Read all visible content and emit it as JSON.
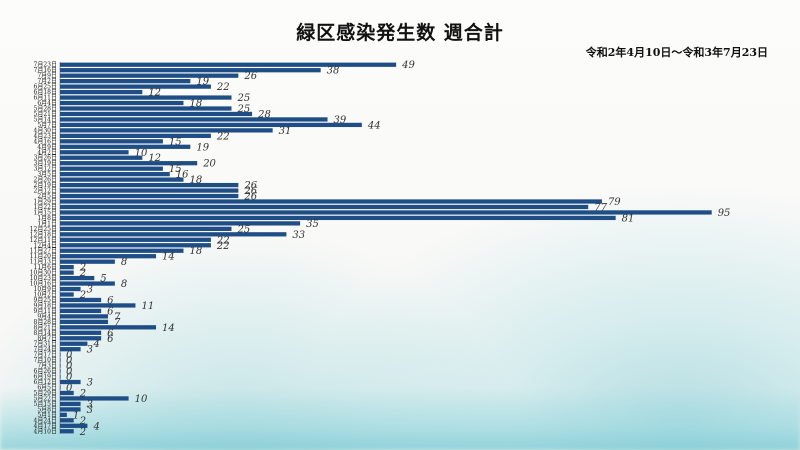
{
  "title": "緑区感染発生数 週合計",
  "subtitle": "令和2年4月10日～令和3年7月23日",
  "chart_data": {
    "type": "bar",
    "orientation": "horizontal",
    "title": "緑区感染発生数 週合計",
    "subtitle": "令和2年4月10日～令和3年7月23日",
    "color": "#1f4e86",
    "xlim": [
      0,
      100
    ],
    "categories": [
      "7月23日",
      "7月16日",
      "7月9日",
      "7月2日",
      "6月25日",
      "6月18日",
      "6月11日",
      "6月4日",
      "5月28日",
      "5月21日",
      "5月14日",
      "5月7日",
      "4月30日",
      "4月23日",
      "4月16日",
      "4月9日",
      "4月2日",
      "3月26日",
      "3月19日",
      "3月12日",
      "3月5日",
      "2月26日",
      "2月19日",
      "2月12日",
      "2月5日",
      "1月29日",
      "1月22日",
      "1月15日",
      "1月8日",
      "1月1日",
      "12月25日",
      "12月18日",
      "12月11日",
      "12月4日",
      "11月27日",
      "11月20日",
      "11月13日",
      "11月6日",
      "10月30日",
      "10月23日",
      "10月16日",
      "10月9日",
      "10月2日",
      "9月25日",
      "9月18日",
      "9月11日",
      "9月4日",
      "8月28日",
      "8月21日",
      "8月14日",
      "8月7日",
      "7月31日",
      "7月24日",
      "7月17日",
      "7月10日",
      "7月3日",
      "6月26日",
      "6月19日",
      "6月12日",
      "6月5日",
      "5月29日",
      "5月22日",
      "5月15日",
      "5月8日",
      "5月1日",
      "4月24日",
      "4月17日",
      "4月10日"
    ],
    "values": [
      49,
      38,
      26,
      19,
      22,
      12,
      25,
      18,
      25,
      28,
      39,
      44,
      31,
      22,
      15,
      19,
      10,
      12,
      20,
      15,
      16,
      18,
      26,
      26,
      26,
      79,
      77,
      95,
      81,
      35,
      25,
      33,
      22,
      22,
      18,
      14,
      8,
      2,
      2,
      5,
      8,
      3,
      2,
      6,
      11,
      6,
      7,
      7,
      14,
      6,
      6,
      4,
      3,
      0,
      0,
      0,
      0,
      0,
      3,
      0,
      2,
      10,
      3,
      3,
      1,
      2,
      4,
      2
    ]
  }
}
